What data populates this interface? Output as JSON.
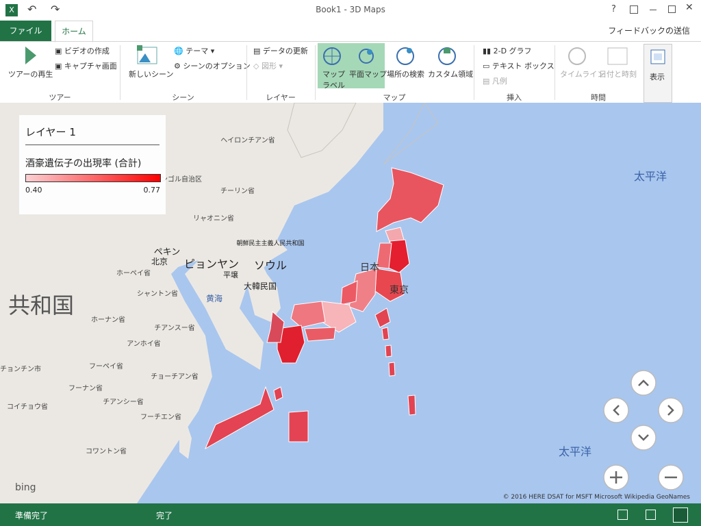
{
  "window": {
    "title": "Book1 - 3D Maps"
  },
  "tabs": {
    "file": "ファイル",
    "home": "ホーム",
    "feedback": "フィードバックの送信"
  },
  "ribbon": {
    "tour": {
      "play": "ツアーの再生",
      "video": "ビデオの作成",
      "capture": "キャプチャ画面",
      "group": "ツアー"
    },
    "scene": {
      "new": "新しいシーン",
      "theme": "テーマ",
      "options": "シーンのオプション",
      "group": "シーン"
    },
    "layer": {
      "refresh": "データの更新",
      "shapes": "図形",
      "group": "レイヤー"
    },
    "map": {
      "labels_1": "マップ",
      "labels_2": "ラベル",
      "flat": "平面マップ",
      "find": "場所の検索",
      "custom": "カスタム領域",
      "group": "マップ"
    },
    "insert": {
      "chart": "2-D グラフ",
      "textbox": "テキスト ボックス",
      "legend": "凡例",
      "group": "挿入"
    },
    "time": {
      "timeline": "タイムライン",
      "datetime": "日付と時刻",
      "group": "時間"
    },
    "view": {
      "show": "表示"
    }
  },
  "legend": {
    "layer": "レイヤー 1",
    "field": "酒豪遺伝子の出現率 (合計)",
    "min": "0.40",
    "max": "0.77"
  },
  "map_labels": [
    "太平洋",
    "太平洋",
    "共和国",
    "ヘイロンチアン省",
    "チーリン省",
    "リャオニン省",
    "内モンゴル自治区",
    "ペキン",
    "北京",
    "ピョンヤン",
    "平壌",
    "ソウル",
    "大韓民国",
    "朝鮮民主主義人民共和国",
    "黄海",
    "ホーペイ省",
    "シャントン省",
    "ホーナン省",
    "チアンスー省",
    "アンホイ省",
    "フーペイ省",
    "チョーチアン省",
    "フーナン省",
    "チアンシー省",
    "フーチエン省",
    "コイチョウ省",
    "コワントン省",
    "日本",
    "東京",
    "チョンチン市"
  ],
  "attribution": {
    "bing": "bing",
    "credits": "© 2016 HERE  DSAT for MSFT  Microsoft  Wikipedia  GeoNames"
  },
  "status": {
    "ready": "準備完了",
    "done": "完了"
  }
}
